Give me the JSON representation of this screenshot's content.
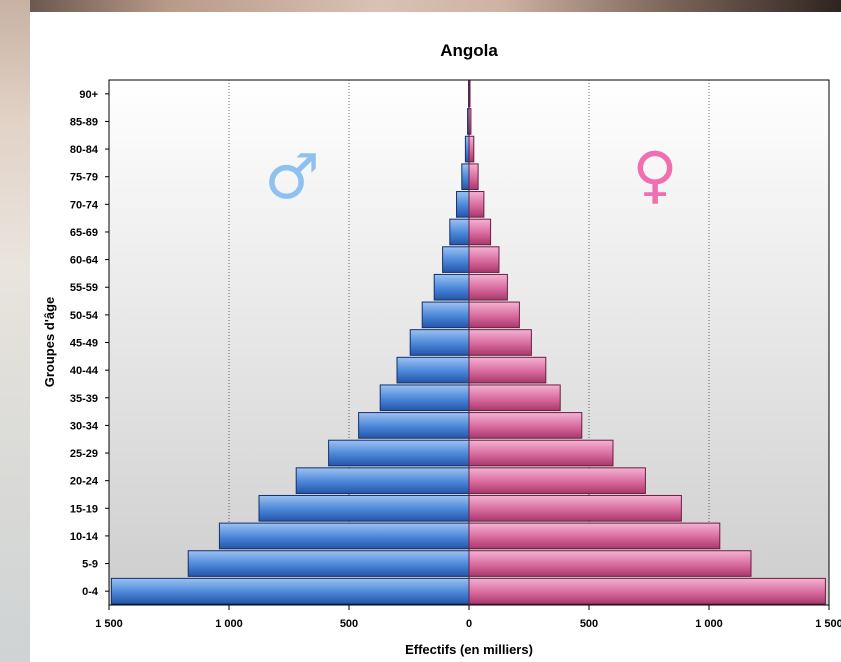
{
  "chart_data": {
    "type": "bar",
    "orientation": "horizontal-population-pyramid",
    "title": "Angola",
    "xlabel": "Effectifs (en milliers)",
    "ylabel": "Groupes d'âge",
    "categories": [
      "0-4",
      "5-9",
      "10-14",
      "15-19",
      "20-24",
      "25-29",
      "30-34",
      "35-39",
      "40-44",
      "45-49",
      "50-54",
      "55-59",
      "60-64",
      "65-69",
      "70-74",
      "75-79",
      "80-84",
      "85-89",
      "90+"
    ],
    "series": [
      {
        "symbol": "♂",
        "color": "#4a86d8",
        "values": [
          1490,
          1170,
          1040,
          875,
          720,
          585,
          460,
          370,
          300,
          245,
          195,
          145,
          110,
          80,
          52,
          30,
          15,
          6,
          2
        ]
      },
      {
        "symbol": "♀",
        "color": "#d86a9e",
        "values": [
          1485,
          1175,
          1045,
          885,
          735,
          600,
          470,
          380,
          320,
          260,
          210,
          160,
          125,
          90,
          62,
          38,
          20,
          8,
          3
        ]
      }
    ],
    "xlim": [
      -1500,
      1500
    ],
    "xticks": [
      {
        "value": -1500,
        "label": "1 500"
      },
      {
        "value": -1000,
        "label": "1 000"
      },
      {
        "value": -500,
        "label": "500"
      },
      {
        "value": 0,
        "label": "0"
      },
      {
        "value": 500,
        "label": "500"
      },
      {
        "value": 1000,
        "label": "1 000"
      },
      {
        "value": 1500,
        "label": "1 500"
      }
    ],
    "grid": "vertical-dotted",
    "legend": "none"
  }
}
